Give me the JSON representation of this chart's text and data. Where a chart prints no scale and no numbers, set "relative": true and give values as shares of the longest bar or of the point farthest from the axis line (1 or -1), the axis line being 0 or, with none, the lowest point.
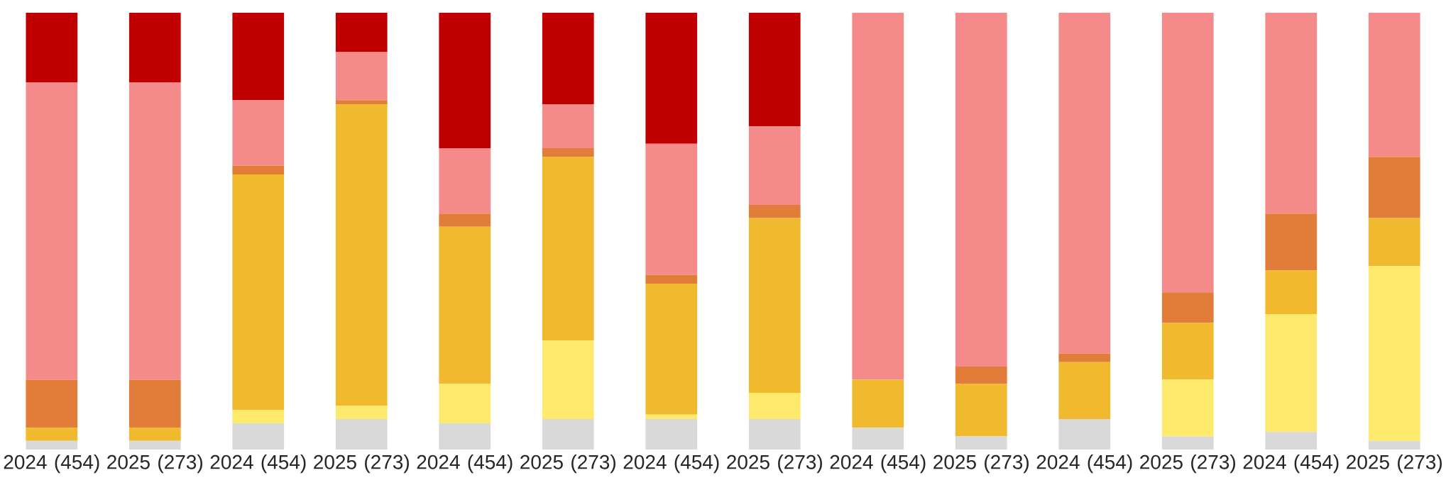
{
  "chart_data": {
    "type": "bar",
    "stacked": true,
    "relative": true,
    "categories": [
      "2024 (454)",
      "2025 (273)",
      "2024 (454)",
      "2025 (273)",
      "2024 (454)",
      "2025 (273)",
      "2024 (454)",
      "2025 (273)",
      "2024 (454)",
      "2025 (273)",
      "2024 (454)",
      "2025 (273)",
      "2024 (454)",
      "2025 (273)"
    ],
    "series": [
      {
        "color": "#d9d9d9",
        "values": [
          0.02,
          0.02,
          0.06,
          0.07,
          0.06,
          0.07,
          0.07,
          0.07,
          0.05,
          0.03,
          0.07,
          0.03,
          0.04,
          0.02
        ]
      },
      {
        "color": "#fde96c",
        "values": [
          null,
          null,
          0.03,
          0.03,
          0.09,
          0.18,
          0.01,
          0.06,
          null,
          null,
          null,
          0.13,
          0.27,
          0.4
        ]
      },
      {
        "color": "#f0b92e",
        "values": [
          0.03,
          0.03,
          0.54,
          0.69,
          0.36,
          0.42,
          0.3,
          0.4,
          0.11,
          0.12,
          0.13,
          0.13,
          0.1,
          0.11
        ]
      },
      {
        "color": "#e27d39",
        "values": [
          0.11,
          0.11,
          0.02,
          0.01,
          0.03,
          0.02,
          0.02,
          0.03,
          null,
          0.04,
          0.02,
          0.07,
          0.13,
          0.14
        ]
      },
      {
        "color": "#f58a8a",
        "values": [
          0.68,
          0.68,
          0.15,
          0.11,
          0.15,
          0.1,
          0.3,
          0.18,
          0.84,
          0.81,
          0.78,
          0.64,
          0.46,
          0.33
        ]
      },
      {
        "color": "#c00000",
        "values": [
          0.16,
          0.16,
          0.2,
          0.09,
          0.31,
          0.21,
          0.3,
          0.26,
          null,
          null,
          null,
          null,
          null,
          null
        ]
      }
    ]
  }
}
